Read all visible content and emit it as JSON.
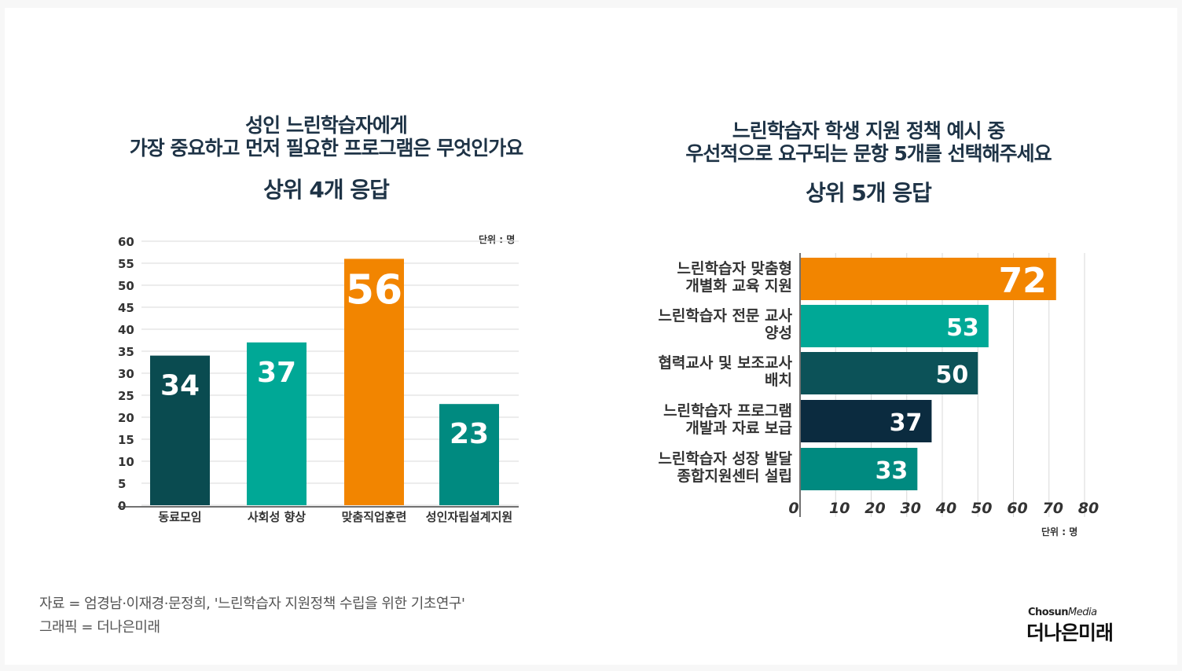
{
  "chart_data": [
    {
      "type": "bar",
      "title": [
        "성인 느린학습자에게",
        "가장 중요하고 먼저 필요한 프로그램은 무엇인가요"
      ],
      "subtitle": "상위 4개 응답",
      "unit": "단위 : 명",
      "categories": [
        "동료모임",
        "사회성 향상",
        "맞춤직업훈련",
        "성인자립설계지원"
      ],
      "values": [
        34,
        37,
        56,
        23
      ],
      "colors": [
        "#0a4b50",
        "#00a896",
        "#f28500",
        "#008a80"
      ],
      "ylim": [
        0,
        60
      ],
      "yticks": [
        0,
        5,
        10,
        15,
        20,
        25,
        30,
        35,
        40,
        45,
        50,
        55,
        60
      ]
    },
    {
      "type": "bar",
      "orientation": "horizontal",
      "title": [
        "느린학습자 학생 지원 정책 예시 중",
        "우선적으로 요구되는 문항 5개를 선택해주세요"
      ],
      "subtitle": "상위 5개 응답",
      "unit": "단위 : 명",
      "categories": [
        [
          "느린학습자 맞춤형",
          "개별화 교육 지원"
        ],
        [
          "느린학습자 전문 교사",
          "양성"
        ],
        [
          "협력교사 및 보조교사",
          "배치"
        ],
        [
          "느린학습자 프로그램",
          "개발과 자료 보급"
        ],
        [
          "느린학습자 성장 발달",
          "종합지원센터 설립"
        ]
      ],
      "values": [
        72,
        53,
        50,
        37,
        33
      ],
      "colors": [
        "#f28500",
        "#00a896",
        "#0c5258",
        "#0b2b3f",
        "#008a80"
      ],
      "xlim": [
        0,
        80
      ],
      "xticks": [
        0,
        10,
        20,
        30,
        40,
        50,
        60,
        70,
        80
      ]
    }
  ],
  "footer": {
    "source": "자료 = 엄경남·이재경·문정희, '느린학습자 지원정책 수립을 위한 기초연구'",
    "graphic": "그래픽 = 더나은미래"
  },
  "brand": {
    "top_bold": "Chosun",
    "top_italic": "Media",
    "main": "더나은미래"
  }
}
